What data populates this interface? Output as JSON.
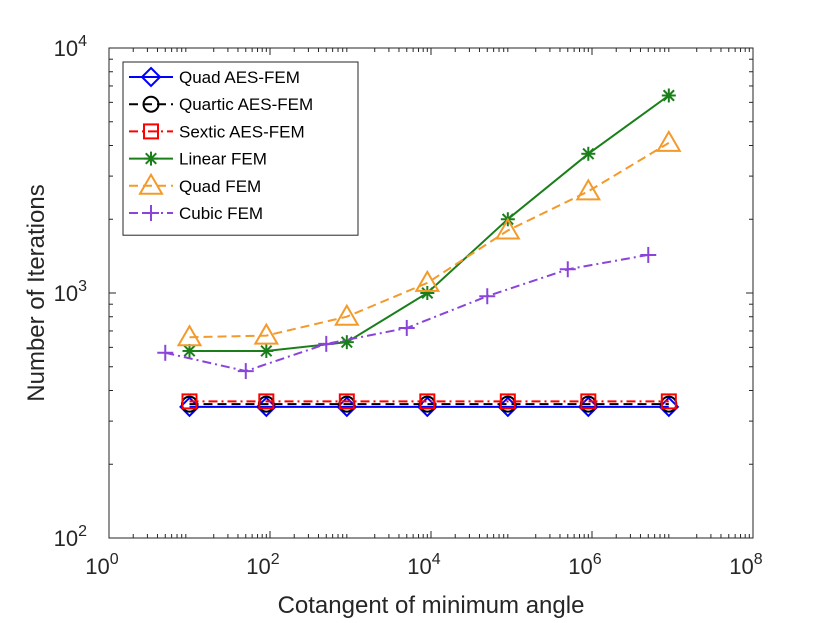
{
  "chart_data": {
    "type": "line",
    "xscale": "log",
    "yscale": "log",
    "xlim": [
      1,
      100000000
    ],
    "ylim": [
      100,
      10000
    ],
    "xlabel": "Cotangent of minimum angle",
    "ylabel": "Number of Iterations",
    "x_ticks": [
      1,
      100,
      10000,
      1000000,
      100000000
    ],
    "y_ticks": [
      100,
      1000,
      10000
    ],
    "x_tick_labels": [
      {
        "base": "10",
        "exp": "0"
      },
      {
        "base": "10",
        "exp": "2"
      },
      {
        "base": "10",
        "exp": "4"
      },
      {
        "base": "10",
        "exp": "6"
      },
      {
        "base": "10",
        "exp": "8"
      }
    ],
    "y_tick_labels": [
      {
        "base": "10",
        "exp": "2"
      },
      {
        "base": "10",
        "exp": "3"
      },
      {
        "base": "10",
        "exp": "4"
      }
    ],
    "grid": false,
    "legend_position": "top-left",
    "series": [
      {
        "name": "Quad AES-FEM",
        "color": "#0000ff",
        "dash": "solid",
        "marker": "diamond",
        "x": [
          10,
          90,
          900,
          9000,
          90000,
          900000,
          9000000
        ],
        "y": [
          343,
          343,
          343,
          343,
          343,
          343,
          343
        ]
      },
      {
        "name": "Quartic AES-FEM",
        "color": "#000000",
        "dash": "dashed",
        "marker": "circle",
        "x": [
          10,
          90,
          900,
          9000,
          90000,
          900000,
          9000000
        ],
        "y": [
          352,
          352,
          352,
          352,
          352,
          352,
          352
        ]
      },
      {
        "name": "Sextic AES-FEM",
        "color": "#ff0000",
        "dash": "dashdot",
        "marker": "square",
        "x": [
          10,
          90,
          900,
          9000,
          90000,
          900000,
          9000000
        ],
        "y": [
          361,
          361,
          361,
          361,
          361,
          361,
          361
        ]
      },
      {
        "name": "Linear FEM",
        "color": "#1a7f1a",
        "dash": "solid",
        "marker": "asterisk",
        "x": [
          10,
          90,
          900,
          9000,
          90000,
          900000,
          9000000
        ],
        "y": [
          580,
          580,
          630,
          1000,
          2000,
          3700,
          6400
        ]
      },
      {
        "name": "Quad FEM",
        "color": "#f39a2b",
        "dash": "dashed",
        "marker": "triangle",
        "x": [
          10,
          90,
          900,
          9000,
          90000,
          900000,
          9000000
        ],
        "y": [
          660,
          670,
          800,
          1100,
          1800,
          2600,
          4100
        ]
      },
      {
        "name": "Cubic FEM",
        "color": "#8a44d9",
        "dash": "dashdot",
        "marker": "plus",
        "x": [
          5,
          50,
          500,
          5000,
          50000,
          500000,
          5000000
        ],
        "y": [
          570,
          480,
          620,
          720,
          970,
          1250,
          1430
        ]
      }
    ]
  }
}
